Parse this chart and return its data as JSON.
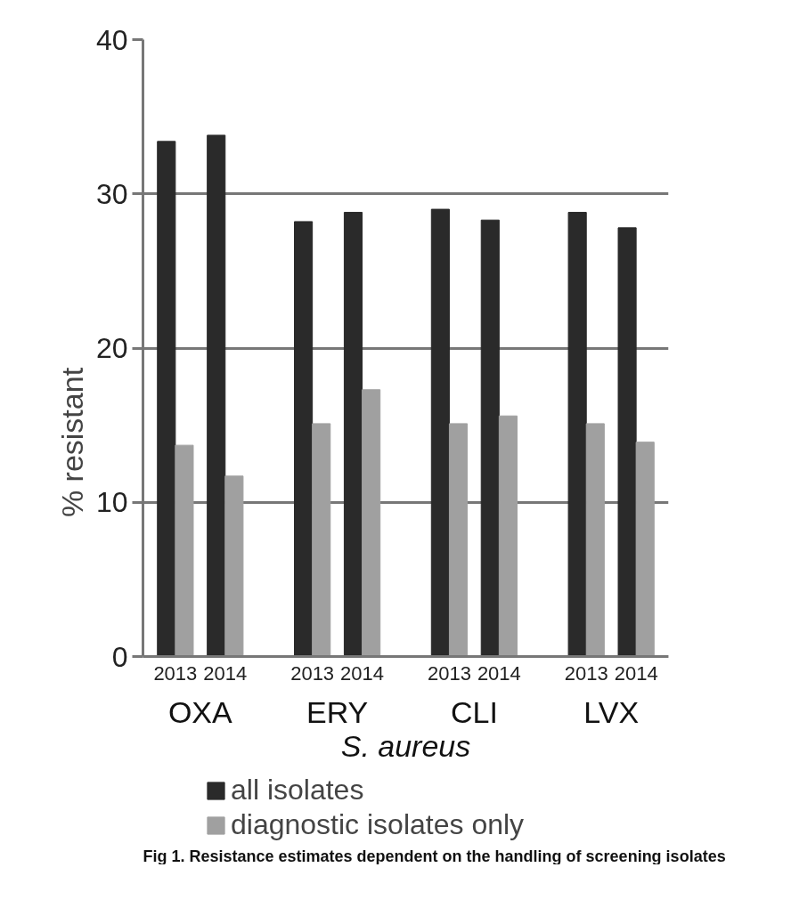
{
  "chart_data": {
    "type": "bar",
    "ylabel": "% resistant",
    "xlabel": "S. aureus",
    "categories": [
      "2013",
      "2014",
      "2013",
      "2014",
      "2013",
      "2014",
      "2013",
      "2014"
    ],
    "series": [
      {
        "name": "all isolates",
        "color": "#2a2a2a",
        "values": [
          33.4,
          33.8,
          28.2,
          28.8,
          29.0,
          28.3,
          28.8,
          27.8
        ]
      },
      {
        "name": "diagnostic isolates only",
        "color": "#a0a0a0",
        "values": [
          13.7,
          11.7,
          15.1,
          17.3,
          15.1,
          15.6,
          15.1,
          13.9
        ]
      }
    ],
    "ylim": [
      0,
      40
    ],
    "yticks": [
      0,
      10,
      20,
      30,
      40
    ],
    "grid": "y",
    "legend": "bottom",
    "annotations": [
      "OXA",
      "ERY",
      "CLI",
      "LVX",
      "Fig 1. Resistance estimates dependent on the handling of screening isolates"
    ]
  }
}
